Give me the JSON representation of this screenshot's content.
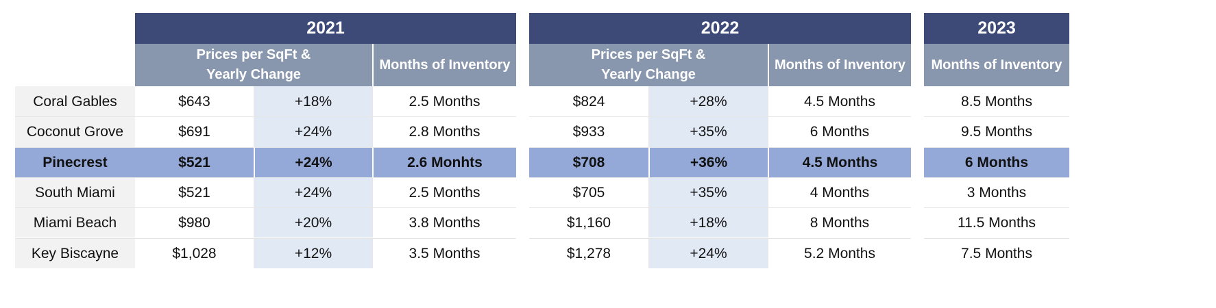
{
  "years": [
    "2021",
    "2022",
    "2023"
  ],
  "subheaders": {
    "prices": "Prices per SqFt &\nYearly Change",
    "months": "Months of Inventory"
  },
  "rows": [
    {
      "name": "Coral Gables",
      "y2021": {
        "price": "$643",
        "change": "+18%",
        "months": "2.5 Months"
      },
      "y2022": {
        "price": "$824",
        "change": "+28%",
        "months": "4.5 Months"
      },
      "y2023": {
        "months": "8.5 Months"
      }
    },
    {
      "name": "Coconut Grove",
      "y2021": {
        "price": "$691",
        "change": "+24%",
        "months": "2.8 Months"
      },
      "y2022": {
        "price": "$933",
        "change": "+35%",
        "months": "6 Months"
      },
      "y2023": {
        "months": "9.5 Months"
      }
    },
    {
      "name": "Pinecrest",
      "highlight": true,
      "y2021": {
        "price": "$521",
        "change": "+24%",
        "months": "2.6 Monhts"
      },
      "y2022": {
        "price": "$708",
        "change": "+36%",
        "months": "4.5 Months"
      },
      "y2023": {
        "months": "6 Months"
      }
    },
    {
      "name": "South Miami",
      "y2021": {
        "price": "$521",
        "change": "+24%",
        "months": "2.5 Months"
      },
      "y2022": {
        "price": "$705",
        "change": "+35%",
        "months": "4 Months"
      },
      "y2023": {
        "months": "3 Months"
      }
    },
    {
      "name": "Miami Beach",
      "y2021": {
        "price": "$980",
        "change": "+20%",
        "months": "3.8 Months"
      },
      "y2022": {
        "price": "$1,160",
        "change": "+18%",
        "months": "8  Months"
      },
      "y2023": {
        "months": "11.5 Months"
      }
    },
    {
      "name": "Key Biscayne",
      "y2021": {
        "price": "$1,028",
        "change": "+12%",
        "months": "3.5 Months"
      },
      "y2022": {
        "price": "$1,278",
        "change": "+24%",
        "months": "5.2 Months"
      },
      "y2023": {
        "months": "7.5 Months"
      }
    }
  ],
  "colors": {
    "year_header": "#3d4a78",
    "sub_header": "#8997ae",
    "highlight_row": "#94a9d8",
    "change_column": "#e1e9f5",
    "label_column": "#f2f2f2"
  }
}
